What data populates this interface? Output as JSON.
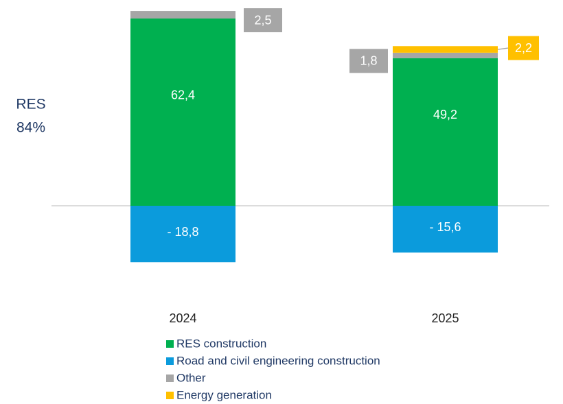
{
  "chart_data": {
    "type": "bar",
    "stacked": true,
    "annotation_lines": [
      "RES",
      "84%"
    ],
    "categories": [
      "2024",
      "2025"
    ],
    "ylim": [
      -40,
      68
    ],
    "series": [
      {
        "name": "RES construction",
        "color": "#00b050",
        "values": [
          62.4,
          49.2
        ],
        "value_labels": [
          "62,4",
          "49,2"
        ]
      },
      {
        "name": "Road and civil engineering construction",
        "color": "#0b9bdc",
        "values": [
          -18.8,
          -15.6
        ],
        "value_labels": [
          "- 18,8",
          "- 15,6"
        ]
      },
      {
        "name": "Other",
        "color": "#a6a6a6",
        "values": [
          2.5,
          1.8
        ],
        "value_labels": [
          "2,5",
          "1,8"
        ]
      },
      {
        "name": "Energy generation",
        "color": "#ffc000",
        "values": [
          null,
          2.2
        ],
        "value_labels": [
          null,
          "2,2"
        ]
      }
    ]
  }
}
